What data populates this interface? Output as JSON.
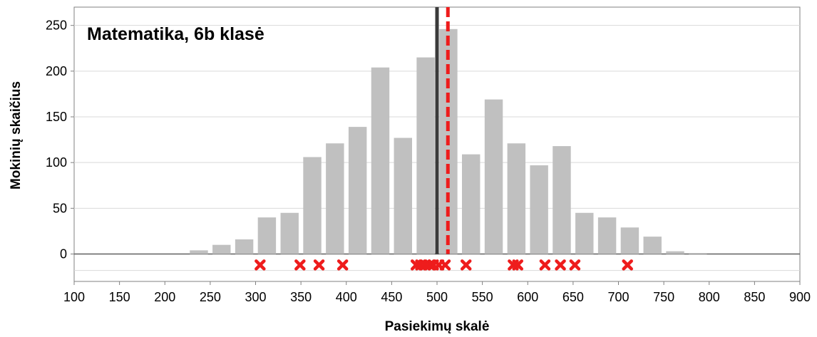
{
  "chart_data": {
    "type": "bar",
    "title": "Matematika, 6b klasė",
    "xlabel": "Pasiekimų skalė",
    "ylabel": "Mokinių skaičius",
    "xlim": [
      100,
      900
    ],
    "ylim": [
      -30,
      270
    ],
    "x_ticks": [
      100,
      150,
      200,
      250,
      300,
      350,
      400,
      450,
      500,
      550,
      600,
      650,
      700,
      750,
      800,
      850,
      900
    ],
    "y_ticks": [
      0,
      50,
      100,
      150,
      200,
      250
    ],
    "bar_width": 20,
    "bars": {
      "x": [
        112.5,
        137.5,
        162.5,
        187.5,
        212.5,
        237.5,
        262.5,
        287.5,
        312.5,
        337.5,
        362.5,
        387.5,
        412.5,
        437.5,
        462.5,
        487.5,
        512.5,
        537.5,
        562.5,
        587.5,
        612.5,
        637.5,
        662.5,
        687.5,
        712.5,
        737.5,
        762.5,
        787.5,
        812.5,
        837.5,
        862.5,
        887.5
      ],
      "values": [
        0,
        0,
        0,
        0,
        0,
        4,
        10,
        16,
        40,
        45,
        106,
        121,
        139,
        204,
        127,
        215,
        246,
        109,
        169,
        121,
        97,
        118,
        45,
        40,
        29,
        19,
        3,
        1,
        0,
        0,
        0,
        0
      ]
    },
    "mean_line": {
      "x": 500
    },
    "reference_line": {
      "x": 512
    },
    "student_markers": {
      "y": -12,
      "x": [
        305,
        349,
        370,
        396,
        477,
        482,
        487,
        492,
        496,
        502,
        509,
        532,
        584,
        589,
        619,
        636,
        652,
        710
      ]
    },
    "colors": {
      "bars": "#c0c0c0",
      "mean_line": "#3a3a3a",
      "reference_line": "#ee1c1c",
      "markers": "#ee1c1c",
      "grid": "#d9d9d9",
      "axis": "#808080"
    }
  }
}
